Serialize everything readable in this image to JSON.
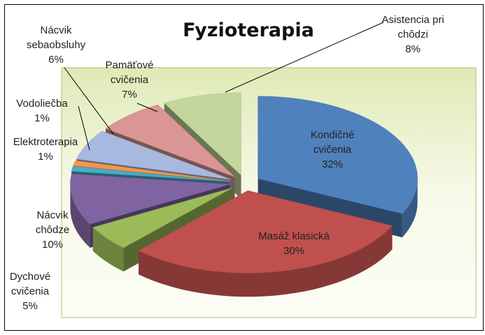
{
  "chart_data": {
    "type": "pie3d",
    "title": "Fyzioterapia",
    "categories": [
      "Kondičné cvičenia",
      "Masáž klasická",
      "Dychové cvičenia",
      "Nácvik chôdze",
      "Elektroterapia",
      "Vodoliečba",
      "Nácvik sebaobsluhy",
      "Pamäťové cvičenia",
      "Asistencia pri chôdzi"
    ],
    "values": [
      32,
      30,
      5,
      10,
      1,
      1,
      6,
      7,
      8
    ],
    "value_labels": [
      "32%",
      "30%",
      "5%",
      "10%",
      "1%",
      "1%",
      "6%",
      "7%",
      "8%"
    ],
    "colors": [
      "#4f81bd",
      "#c0504d",
      "#9bbb59",
      "#8064a2",
      "#4bacc6",
      "#f79646",
      "#a7b9de",
      "#d99694",
      "#c3d69b"
    ]
  }
}
